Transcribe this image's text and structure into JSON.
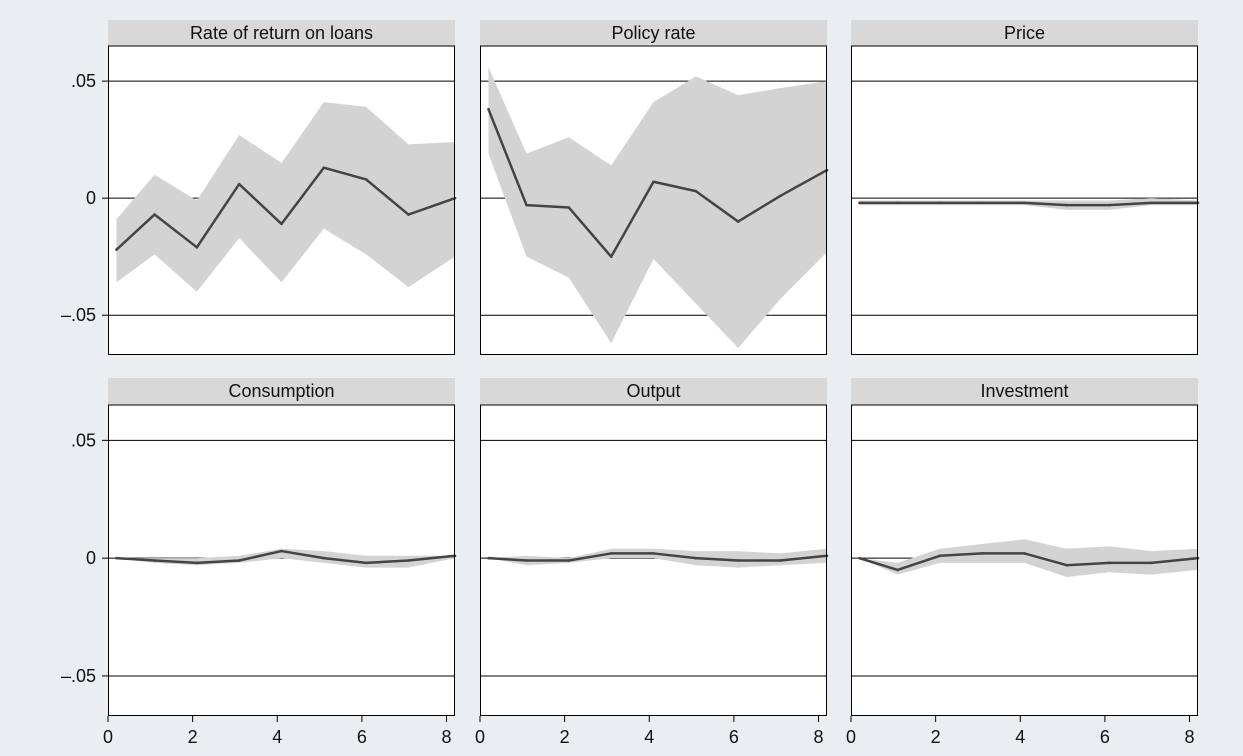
{
  "figure": {
    "background_color": "#eaeef1",
    "panel_color": "#ffffff",
    "header_color": "#d8d8d8",
    "band_color": "#d3d3d3",
    "line_color": "#444444"
  },
  "chart_data": [
    {
      "type": "area",
      "title": "Rate of return on loans",
      "x": [
        0.2,
        1.1,
        2.1,
        3.1,
        4.1,
        5.1,
        6.1,
        7.1,
        8.2
      ],
      "series": [
        {
          "role": "estimate",
          "values": [
            -0.022,
            -0.007,
            -0.021,
            0.006,
            -0.011,
            0.013,
            0.008,
            -0.007,
            0.0
          ]
        },
        {
          "role": "upper",
          "values": [
            -0.009,
            0.01,
            -0.001,
            0.027,
            0.015,
            0.041,
            0.039,
            0.023,
            0.024
          ]
        },
        {
          "role": "lower",
          "values": [
            -0.036,
            -0.024,
            -0.04,
            -0.017,
            -0.036,
            -0.013,
            -0.024,
            -0.038,
            -0.025
          ]
        }
      ],
      "xlim": [
        0,
        8.2
      ],
      "ylim": [
        -0.067,
        0.065
      ],
      "yticks": [
        -0.05,
        0,
        0.05
      ],
      "yticklabels": [
        "–.05",
        "0",
        ".05"
      ],
      "xticks": [],
      "xticklabels": [],
      "grid": true
    },
    {
      "type": "area",
      "title": "Policy rate",
      "x": [
        0.2,
        1.1,
        2.1,
        3.1,
        4.1,
        5.1,
        6.1,
        7.1,
        8.2
      ],
      "series": [
        {
          "role": "estimate",
          "values": [
            0.038,
            -0.003,
            -0.004,
            -0.025,
            0.007,
            0.003,
            -0.01,
            0.001,
            0.012
          ]
        },
        {
          "role": "upper",
          "values": [
            0.056,
            0.019,
            0.026,
            0.014,
            0.041,
            0.052,
            0.044,
            0.047,
            0.05
          ]
        },
        {
          "role": "lower",
          "values": [
            0.019,
            -0.025,
            -0.034,
            -0.062,
            -0.026,
            -0.045,
            -0.064,
            -0.043,
            -0.023
          ]
        }
      ],
      "xlim": [
        0,
        8.2
      ],
      "ylim": [
        -0.067,
        0.065
      ],
      "yticks": [
        -0.05,
        0,
        0.05
      ],
      "yticklabels": [],
      "xticks": [],
      "xticklabels": [],
      "grid": true
    },
    {
      "type": "area",
      "title": "Price",
      "x": [
        0.2,
        1.1,
        2.1,
        3.1,
        4.1,
        5.1,
        6.1,
        7.1,
        8.2
      ],
      "series": [
        {
          "role": "estimate",
          "values": [
            -0.002,
            -0.002,
            -0.002,
            -0.002,
            -0.002,
            -0.003,
            -0.003,
            -0.002,
            -0.002
          ]
        },
        {
          "role": "upper",
          "values": [
            -0.001,
            -0.001,
            -0.001,
            -0.001,
            -0.001,
            -0.001,
            -0.001,
            0.0,
            -0.001
          ]
        },
        {
          "role": "lower",
          "values": [
            -0.003,
            -0.003,
            -0.003,
            -0.003,
            -0.003,
            -0.005,
            -0.005,
            -0.003,
            -0.003
          ]
        }
      ],
      "xlim": [
        0,
        8.2
      ],
      "ylim": [
        -0.067,
        0.065
      ],
      "yticks": [
        -0.05,
        0,
        0.05
      ],
      "yticklabels": [],
      "xticks": [],
      "xticklabels": [],
      "grid": true
    },
    {
      "type": "area",
      "title": "Consumption",
      "x": [
        0.2,
        1.1,
        2.1,
        3.1,
        4.1,
        5.1,
        6.1,
        7.1,
        8.2
      ],
      "series": [
        {
          "role": "estimate",
          "values": [
            0.0,
            -0.001,
            -0.002,
            -0.001,
            0.003,
            0.0,
            -0.002,
            -0.001,
            0.001
          ]
        },
        {
          "role": "upper",
          "values": [
            0.0,
            0.0,
            0.0,
            0.001,
            0.004,
            0.003,
            0.001,
            0.001,
            0.001
          ]
        },
        {
          "role": "lower",
          "values": [
            0.0,
            -0.002,
            -0.003,
            -0.002,
            0.0,
            -0.002,
            -0.004,
            -0.004,
            0.0
          ]
        }
      ],
      "xlim": [
        0,
        8.2
      ],
      "ylim": [
        -0.067,
        0.065
      ],
      "yticks": [
        -0.05,
        0,
        0.05
      ],
      "yticklabels": [
        "–.05",
        "0",
        ".05"
      ],
      "xticks": [
        0,
        2,
        4,
        6,
        8
      ],
      "xticklabels": [
        "0",
        "2",
        "4",
        "6",
        "8"
      ],
      "grid": true
    },
    {
      "type": "area",
      "title": "Output",
      "x": [
        0.2,
        1.1,
        2.1,
        3.1,
        4.1,
        5.1,
        6.1,
        7.1,
        8.2
      ],
      "series": [
        {
          "role": "estimate",
          "values": [
            0.0,
            -0.001,
            -0.001,
            0.002,
            0.002,
            0.0,
            -0.001,
            -0.001,
            0.001
          ]
        },
        {
          "role": "upper",
          "values": [
            0.0,
            0.001,
            0.0,
            0.004,
            0.004,
            0.003,
            0.003,
            0.002,
            0.004
          ]
        },
        {
          "role": "lower",
          "values": [
            0.0,
            -0.003,
            -0.002,
            0.0,
            0.0,
            -0.003,
            -0.004,
            -0.003,
            -0.002
          ]
        }
      ],
      "xlim": [
        0,
        8.2
      ],
      "ylim": [
        -0.067,
        0.065
      ],
      "yticks": [
        -0.05,
        0,
        0.05
      ],
      "yticklabels": [],
      "xticks": [
        0,
        2,
        4,
        6,
        8
      ],
      "xticklabels": [
        "0",
        "2",
        "4",
        "6",
        "8"
      ],
      "grid": true
    },
    {
      "type": "area",
      "title": "Investment",
      "x": [
        0.2,
        1.1,
        2.1,
        3.1,
        4.1,
        5.1,
        6.1,
        7.1,
        8.2
      ],
      "series": [
        {
          "role": "estimate",
          "values": [
            0.0,
            -0.005,
            0.001,
            0.002,
            0.002,
            -0.003,
            -0.002,
            -0.002,
            0.0
          ]
        },
        {
          "role": "upper",
          "values": [
            0.0,
            -0.002,
            0.004,
            0.006,
            0.008,
            0.004,
            0.005,
            0.003,
            0.004
          ]
        },
        {
          "role": "lower",
          "values": [
            0.0,
            -0.007,
            -0.002,
            -0.002,
            -0.002,
            -0.008,
            -0.006,
            -0.007,
            -0.005
          ]
        }
      ],
      "xlim": [
        0,
        8.2
      ],
      "ylim": [
        -0.067,
        0.065
      ],
      "yticks": [
        -0.05,
        0,
        0.05
      ],
      "yticklabels": [],
      "xticks": [
        0,
        2,
        4,
        6,
        8
      ],
      "xticklabels": [
        "0",
        "2",
        "4",
        "6",
        "8"
      ],
      "grid": true
    }
  ]
}
